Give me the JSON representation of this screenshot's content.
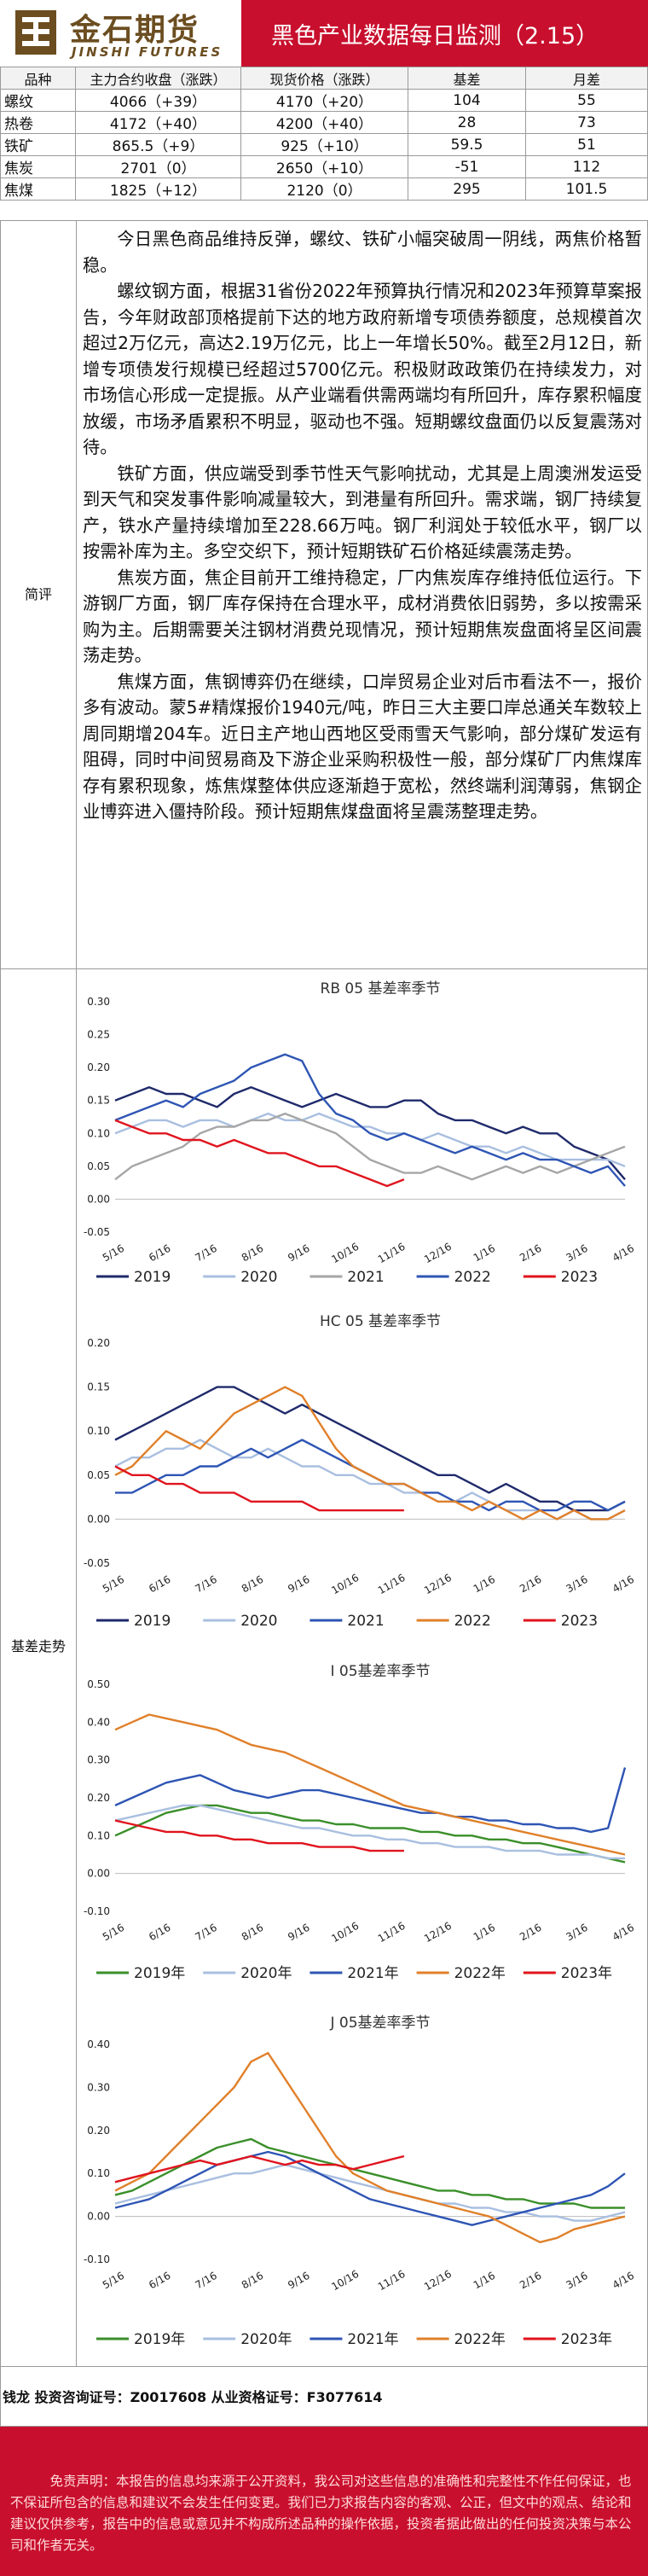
{
  "header": {
    "logo_cn": "金石期货",
    "logo_en": "JINSHI FUTURES",
    "title": "黑色产业数据每日监测（2.15）"
  },
  "price_table": {
    "headers": [
      "品种",
      "主力合约收盘（涨跌）",
      "现货价格（涨跌）",
      "基差",
      "月差"
    ],
    "rows": [
      [
        "螺纹",
        "4066（+39）",
        "4170（+20）",
        "104",
        "55"
      ],
      [
        "热卷",
        "4172（+40）",
        "4200（+40）",
        "28",
        "73"
      ],
      [
        "铁矿",
        "865.5（+9）",
        "925（+10）",
        "59.5",
        "51"
      ],
      [
        "焦炭",
        "2701（0）",
        "2650（+10）",
        "-51",
        "112"
      ],
      [
        "焦煤",
        "1825（+12）",
        "2120（0）",
        "295",
        "101.5"
      ]
    ]
  },
  "commentary": {
    "label": "简评",
    "paragraphs": [
      "今日黑色商品维持反弹，螺纹、铁矿小幅突破周一阴线，两焦价格暂稳。",
      "螺纹钢方面，根据31省份2022年预算执行情况和2023年预算草案报告，今年财政部顶格提前下达的地方政府新增专项债券额度，总规模首次超过2万亿元，高达2.19万亿元，比上一年增长50%。截至2月12日，新增专项债发行规模已经超过5700亿元。积极财政政策仍在持续发力，对市场信心形成一定提振。从产业端看供需两端均有所回升，库存累积幅度放缓，市场矛盾累积不明显，驱动也不强。短期螺纹盘面仍以反复震荡对待。",
      "铁矿方面，供应端受到季节性天气影响扰动，尤其是上周澳洲发运受到天气和突发事件影响减量较大，到港量有所回升。需求端，钢厂持续复产，铁水产量持续增加至228.66万吨。钢厂利润处于较低水平，钢厂以按需补库为主。多空交织下，预计短期铁矿石价格延续震荡走势。",
      "焦炭方面，焦企目前开工维持稳定，厂内焦炭库存维持低位运行。下游钢厂方面，钢厂库存保持在合理水平，成材消费依旧弱势，多以按需采购为主。后期需要关注钢材消费兑现情况，预计短期焦炭盘面将呈区间震荡走势。",
      "焦煤方面，焦钢博弈仍在继续，口岸贸易企业对后市看法不一，报价多有波动。蒙5#精煤报价1940元/吨，昨日三大主要口岸总通关车数较上周同期增204车。近日主产地山西地区受雨雪天气影响，部分煤矿发运有阻碍，同时中间贸易商及下游企业采购积极性一般，部分煤矿厂内焦煤库存有累积现象，炼焦煤整体供应逐渐趋于宽松，然终端利润薄弱，焦钢企业博弈进入僵持阶段。预计短期焦煤盘面将呈震荡整理走势。"
    ]
  },
  "basis_label": "基差走势",
  "chart_data": [
    {
      "type": "line",
      "title": "RB 05 基差率季节",
      "ylim": [
        -0.05,
        0.3
      ],
      "yticks": [
        "0.30",
        "0.25",
        "0.20",
        "0.15",
        "0.10",
        "0.05",
        "0.00",
        "-0.05"
      ],
      "xticks": [
        "5/16",
        "6/16",
        "7/16",
        "8/16",
        "9/16",
        "10/16",
        "11/16",
        "12/16",
        "1/16",
        "2/16",
        "3/16",
        "4/16"
      ],
      "series": [
        {
          "name": "2019",
          "color": "#1f2a6b",
          "values": [
            0.15,
            0.16,
            0.17,
            0.16,
            0.16,
            0.15,
            0.14,
            0.16,
            0.17,
            0.16,
            0.15,
            0.14,
            0.15,
            0.16,
            0.15,
            0.14,
            0.14,
            0.15,
            0.15,
            0.13,
            0.12,
            0.12,
            0.11,
            0.1,
            0.11,
            0.1,
            0.1,
            0.08,
            0.07,
            0.06,
            0.03
          ]
        },
        {
          "name": "2020",
          "color": "#a9bfe0",
          "values": [
            0.1,
            0.11,
            0.12,
            0.12,
            0.11,
            0.12,
            0.12,
            0.11,
            0.12,
            0.13,
            0.12,
            0.12,
            0.13,
            0.12,
            0.11,
            0.11,
            0.1,
            0.1,
            0.09,
            0.1,
            0.09,
            0.08,
            0.08,
            0.07,
            0.08,
            0.07,
            0.06,
            0.06,
            0.06,
            0.06,
            0.05
          ]
        },
        {
          "name": "2021",
          "color": "#a6a6a6",
          "values": [
            0.03,
            0.05,
            0.06,
            0.07,
            0.08,
            0.1,
            0.11,
            0.11,
            0.12,
            0.12,
            0.13,
            0.12,
            0.11,
            0.1,
            0.08,
            0.06,
            0.05,
            0.04,
            0.04,
            0.05,
            0.04,
            0.03,
            0.04,
            0.05,
            0.04,
            0.05,
            0.04,
            0.05,
            0.06,
            0.07,
            0.08
          ]
        },
        {
          "name": "2022",
          "color": "#2e55b4",
          "values": [
            0.12,
            0.13,
            0.14,
            0.15,
            0.14,
            0.16,
            0.17,
            0.18,
            0.2,
            0.21,
            0.22,
            0.21,
            0.16,
            0.13,
            0.12,
            0.1,
            0.09,
            0.1,
            0.09,
            0.08,
            0.07,
            0.08,
            0.07,
            0.06,
            0.07,
            0.06,
            0.06,
            0.05,
            0.04,
            0.05,
            0.02
          ]
        },
        {
          "name": "2023",
          "color": "#e0141e",
          "values": [
            0.12,
            0.11,
            0.1,
            0.1,
            0.09,
            0.09,
            0.08,
            0.09,
            0.08,
            0.07,
            0.07,
            0.06,
            0.05,
            0.05,
            0.04,
            0.03,
            0.02,
            0.03
          ]
        }
      ]
    },
    {
      "type": "line",
      "title": "HC 05 基差率季节",
      "ylim": [
        -0.05,
        0.2
      ],
      "yticks": [
        "0.20",
        "0.15",
        "0.10",
        "0.05",
        "0.00",
        "-0.05"
      ],
      "xticks": [
        "5/16",
        "6/16",
        "7/16",
        "8/16",
        "9/16",
        "10/16",
        "11/16",
        "12/16",
        "1/16",
        "2/16",
        "3/16",
        "4/16"
      ],
      "series": [
        {
          "name": "2019",
          "color": "#1f2a6b",
          "values": [
            0.09,
            0.1,
            0.11,
            0.12,
            0.13,
            0.14,
            0.15,
            0.15,
            0.14,
            0.13,
            0.12,
            0.13,
            0.12,
            0.11,
            0.1,
            0.09,
            0.08,
            0.07,
            0.06,
            0.05,
            0.05,
            0.04,
            0.03,
            0.04,
            0.03,
            0.02,
            0.02,
            0.01,
            0.01,
            0.01,
            0.02
          ]
        },
        {
          "name": "2020",
          "color": "#a9bfe0",
          "values": [
            0.06,
            0.07,
            0.07,
            0.08,
            0.08,
            0.09,
            0.08,
            0.07,
            0.07,
            0.08,
            0.07,
            0.06,
            0.06,
            0.05,
            0.05,
            0.04,
            0.04,
            0.03,
            0.03,
            0.02,
            0.02,
            0.03,
            0.02,
            0.01,
            0.01,
            0.01,
            0.0,
            0.01,
            0.0,
            0.0,
            0.01
          ]
        },
        {
          "name": "2021",
          "color": "#2e55b4",
          "values": [
            0.03,
            0.03,
            0.04,
            0.05,
            0.05,
            0.06,
            0.06,
            0.07,
            0.08,
            0.07,
            0.08,
            0.09,
            0.08,
            0.07,
            0.06,
            0.05,
            0.04,
            0.04,
            0.03,
            0.03,
            0.02,
            0.02,
            0.01,
            0.02,
            0.02,
            0.01,
            0.01,
            0.02,
            0.02,
            0.01,
            0.02
          ]
        },
        {
          "name": "2022",
          "color": "#e0802a",
          "values": [
            0.05,
            0.06,
            0.08,
            0.1,
            0.09,
            0.08,
            0.1,
            0.12,
            0.13,
            0.14,
            0.15,
            0.14,
            0.11,
            0.08,
            0.06,
            0.05,
            0.04,
            0.04,
            0.03,
            0.02,
            0.02,
            0.01,
            0.02,
            0.01,
            0.0,
            0.01,
            0.0,
            0.01,
            0.0,
            0.0,
            0.01
          ]
        },
        {
          "name": "2023",
          "color": "#e0141e",
          "values": [
            0.06,
            0.05,
            0.05,
            0.04,
            0.04,
            0.03,
            0.03,
            0.03,
            0.02,
            0.02,
            0.02,
            0.02,
            0.01,
            0.01,
            0.01,
            0.01,
            0.01,
            0.01
          ]
        }
      ]
    },
    {
      "type": "line",
      "title": "I 05基差率季节",
      "ylim": [
        -0.1,
        0.5
      ],
      "yticks": [
        "0.50",
        "0.40",
        "0.30",
        "0.20",
        "0.10",
        "0.00",
        "-0.10"
      ],
      "xticks": [
        "5/16",
        "6/16",
        "7/16",
        "8/16",
        "9/16",
        "10/16",
        "11/16",
        "12/16",
        "1/16",
        "2/16",
        "3/16",
        "4/16"
      ],
      "series": [
        {
          "name": "2019年",
          "color": "#3a8f2a",
          "values": [
            0.1,
            0.12,
            0.14,
            0.16,
            0.17,
            0.18,
            0.18,
            0.17,
            0.16,
            0.16,
            0.15,
            0.14,
            0.14,
            0.13,
            0.13,
            0.12,
            0.12,
            0.12,
            0.11,
            0.11,
            0.1,
            0.1,
            0.09,
            0.09,
            0.08,
            0.08,
            0.07,
            0.06,
            0.05,
            0.04,
            0.03
          ]
        },
        {
          "name": "2020年",
          "color": "#a9bfe0",
          "values": [
            0.14,
            0.15,
            0.16,
            0.17,
            0.18,
            0.18,
            0.17,
            0.16,
            0.15,
            0.14,
            0.13,
            0.12,
            0.12,
            0.11,
            0.1,
            0.1,
            0.09,
            0.09,
            0.08,
            0.08,
            0.07,
            0.07,
            0.07,
            0.06,
            0.06,
            0.06,
            0.05,
            0.05,
            0.05,
            0.04,
            0.04
          ]
        },
        {
          "name": "2021年",
          "color": "#2e55b4",
          "values": [
            0.18,
            0.2,
            0.22,
            0.24,
            0.25,
            0.26,
            0.24,
            0.22,
            0.21,
            0.2,
            0.21,
            0.22,
            0.22,
            0.21,
            0.2,
            0.19,
            0.18,
            0.17,
            0.16,
            0.16,
            0.15,
            0.15,
            0.14,
            0.14,
            0.13,
            0.13,
            0.12,
            0.12,
            0.11,
            0.12,
            0.28
          ]
        },
        {
          "name": "2022年",
          "color": "#e0802a",
          "values": [
            0.38,
            0.4,
            0.42,
            0.41,
            0.4,
            0.39,
            0.38,
            0.36,
            0.34,
            0.33,
            0.32,
            0.3,
            0.28,
            0.26,
            0.24,
            0.22,
            0.2,
            0.18,
            0.17,
            0.16,
            0.15,
            0.14,
            0.13,
            0.12,
            0.11,
            0.1,
            0.09,
            0.08,
            0.07,
            0.06,
            0.05
          ]
        },
        {
          "name": "2023年",
          "color": "#e0141e",
          "values": [
            0.14,
            0.13,
            0.12,
            0.11,
            0.11,
            0.1,
            0.1,
            0.09,
            0.09,
            0.08,
            0.08,
            0.08,
            0.07,
            0.07,
            0.07,
            0.06,
            0.06,
            0.06
          ]
        }
      ]
    },
    {
      "type": "line",
      "title": "J 05基差率季节",
      "ylim": [
        -0.1,
        0.4
      ],
      "yticks": [
        "0.40",
        "0.30",
        "0.20",
        "0.10",
        "0.00",
        "-0.10"
      ],
      "xticks": [
        "5/16",
        "6/16",
        "7/16",
        "8/16",
        "9/16",
        "10/16",
        "11/16",
        "12/16",
        "1/16",
        "2/16",
        "3/16",
        "4/16"
      ],
      "series": [
        {
          "name": "2019年",
          "color": "#3a8f2a",
          "values": [
            0.05,
            0.06,
            0.08,
            0.1,
            0.12,
            0.14,
            0.16,
            0.17,
            0.18,
            0.16,
            0.15,
            0.14,
            0.13,
            0.12,
            0.11,
            0.1,
            0.09,
            0.08,
            0.07,
            0.06,
            0.06,
            0.05,
            0.05,
            0.04,
            0.04,
            0.03,
            0.03,
            0.03,
            0.02,
            0.02,
            0.02
          ]
        },
        {
          "name": "2020年",
          "color": "#a9bfe0",
          "values": [
            0.03,
            0.04,
            0.05,
            0.06,
            0.07,
            0.08,
            0.09,
            0.1,
            0.1,
            0.11,
            0.12,
            0.11,
            0.1,
            0.09,
            0.08,
            0.07,
            0.06,
            0.05,
            0.04,
            0.03,
            0.03,
            0.02,
            0.02,
            0.01,
            0.01,
            0.0,
            0.0,
            -0.01,
            -0.01,
            0.0,
            0.01
          ]
        },
        {
          "name": "2021年",
          "color": "#2e55b4",
          "values": [
            0.02,
            0.03,
            0.04,
            0.06,
            0.08,
            0.1,
            0.12,
            0.13,
            0.14,
            0.15,
            0.14,
            0.12,
            0.1,
            0.08,
            0.06,
            0.04,
            0.03,
            0.02,
            0.01,
            0.0,
            -0.01,
            -0.02,
            -0.01,
            0.0,
            0.01,
            0.02,
            0.03,
            0.04,
            0.05,
            0.07,
            0.1
          ]
        },
        {
          "name": "2022年",
          "color": "#e0802a",
          "values": [
            0.06,
            0.08,
            0.1,
            0.14,
            0.18,
            0.22,
            0.26,
            0.3,
            0.36,
            0.38,
            0.32,
            0.26,
            0.2,
            0.14,
            0.1,
            0.08,
            0.06,
            0.05,
            0.04,
            0.03,
            0.02,
            0.01,
            0.0,
            -0.02,
            -0.04,
            -0.06,
            -0.05,
            -0.03,
            -0.02,
            -0.01,
            0.0
          ]
        },
        {
          "name": "2023年",
          "color": "#e0141e",
          "values": [
            0.08,
            0.09,
            0.1,
            0.11,
            0.12,
            0.13,
            0.12,
            0.13,
            0.14,
            0.13,
            0.12,
            0.13,
            0.12,
            0.12,
            0.11,
            0.12,
            0.13,
            0.14
          ]
        }
      ]
    }
  ],
  "footer": {
    "analyst": "钱龙 投资咨询证号：Z0017608 从业资格证号：F3077614",
    "disclaimer": "免责声明：本报告的信息均来源于公开资料，我公司对这些信息的准确性和完整性不作任何保证，也不保证所包含的信息和建议不会发生任何变更。我们已力求报告内容的客观、公正，但文中的观点、结论和建议仅供参考，报告中的信息或意见并不构成所述品种的操作依据，投资者据此做出的任何投资决策与本公司和作者无关。"
  }
}
